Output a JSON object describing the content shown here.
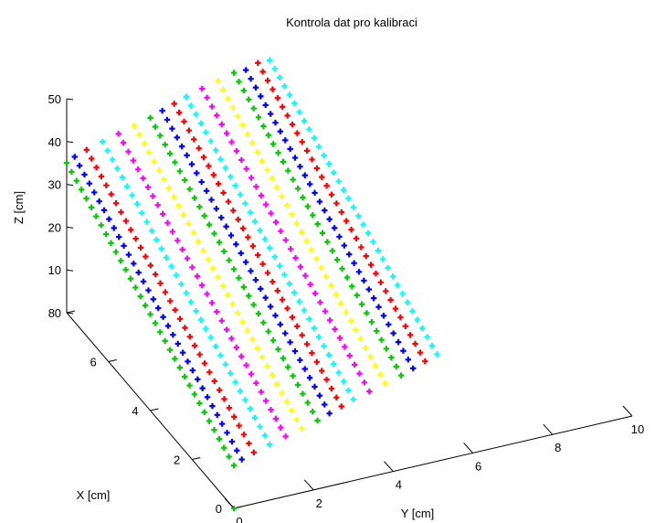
{
  "chart_data": {
    "type": "scatter",
    "projection": "3d",
    "title": "Kontrola dat pro kalibraci",
    "xlabel": "X [cm]",
    "ylabel": "Y [cm]",
    "zlabel": "Z [cm]",
    "xlim": [
      0,
      8
    ],
    "ylim": [
      0,
      10
    ],
    "zlim": [
      0,
      50
    ],
    "x_ticks": [
      "0",
      "2",
      "4",
      "6",
      "8"
    ],
    "y_ticks": [
      "0",
      "2",
      "4",
      "6",
      "8",
      "10"
    ],
    "z_ticks": [
      "0",
      "10",
      "20",
      "30",
      "40",
      "50"
    ],
    "grid": false,
    "legend": "none",
    "marker": "+",
    "x_range_per_line": [
      0,
      8
    ],
    "scan_lines": [
      {
        "y": 0.0,
        "z_start": 10,
        "z_end": 35,
        "color": "#00cc00"
      },
      {
        "y": 0.2,
        "z_start": 11,
        "z_end": 36,
        "color": "#0000ff"
      },
      {
        "y": 0.5,
        "z_start": 12,
        "z_end": 37,
        "color": "#ff0000"
      },
      {
        "y": 0.9,
        "z_start": 13,
        "z_end": 38,
        "color": "#00ffff"
      },
      {
        "y": 1.3,
        "z_start": 14,
        "z_end": 39,
        "color": "#ff00ff"
      },
      {
        "y": 1.7,
        "z_start": 15,
        "z_end": 40,
        "color": "#ffff00"
      },
      {
        "y": 2.1,
        "z_start": 16,
        "z_end": 41,
        "color": "#00cc00"
      },
      {
        "y": 2.4,
        "z_start": 17,
        "z_end": 42,
        "color": "#0000ff"
      },
      {
        "y": 2.7,
        "z_start": 18,
        "z_end": 43,
        "color": "#ff0000"
      },
      {
        "y": 3.0,
        "z_start": 19,
        "z_end": 44,
        "color": "#00ffff"
      },
      {
        "y": 3.4,
        "z_start": 20,
        "z_end": 45,
        "color": "#ff00ff"
      },
      {
        "y": 3.8,
        "z_start": 21,
        "z_end": 46,
        "color": "#ffff00"
      },
      {
        "y": 4.2,
        "z_start": 22,
        "z_end": 47,
        "color": "#00cc00"
      },
      {
        "y": 4.5,
        "z_start": 23,
        "z_end": 47,
        "color": "#0000ff"
      },
      {
        "y": 4.8,
        "z_start": 24,
        "z_end": 48,
        "color": "#ff0000"
      },
      {
        "y": 5.1,
        "z_start": 25,
        "z_end": 48,
        "color": "#00ffff"
      }
    ],
    "origin_point": {
      "x": 0,
      "y": 0,
      "z": 0,
      "color": "#00cc00"
    }
  }
}
